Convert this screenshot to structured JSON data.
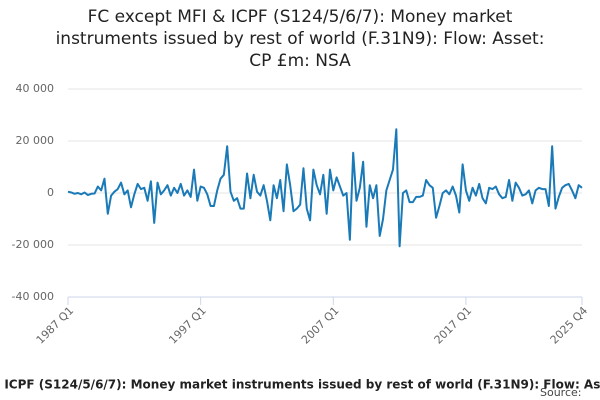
{
  "chart_data": {
    "type": "line",
    "title": "FC except MFI & ICPF (S124/5/6/7): Money market instruments issued by rest of world (F.31N9): Flow: Asset: CP £m: NSA",
    "source": "Source:",
    "categories": [
      "1987 Q1",
      null,
      null,
      null,
      null,
      null,
      null,
      null,
      null,
      null,
      null,
      null,
      null,
      null,
      null,
      null,
      null,
      null,
      null,
      null,
      null,
      null,
      null,
      null,
      null,
      null,
      null,
      null,
      null,
      null,
      null,
      null,
      null,
      null,
      null,
      null,
      null,
      null,
      null,
      null,
      "1997 Q1",
      null,
      null,
      null,
      null,
      null,
      null,
      null,
      null,
      null,
      null,
      null,
      null,
      null,
      null,
      null,
      null,
      null,
      null,
      null,
      null,
      null,
      null,
      null,
      null,
      null,
      null,
      null,
      null,
      null,
      null,
      null,
      null,
      null,
      null,
      null,
      null,
      null,
      null,
      null,
      "2007 Q1",
      null,
      null,
      null,
      null,
      null,
      null,
      null,
      null,
      null,
      null,
      null,
      null,
      null,
      null,
      null,
      null,
      null,
      null,
      null,
      null,
      null,
      null,
      null,
      null,
      null,
      null,
      null,
      null,
      null,
      null,
      null,
      null,
      null,
      null,
      null,
      null,
      null,
      null,
      null,
      "2017 Q1",
      null,
      null,
      null,
      null,
      null,
      null,
      null,
      null,
      null,
      null,
      null,
      null,
      null,
      null,
      null,
      null,
      null,
      null,
      null,
      null,
      null,
      null,
      null,
      null,
      null,
      null,
      null,
      null,
      null,
      null,
      null,
      null,
      null,
      null,
      "2025 Q4"
    ],
    "series": [
      {
        "color": "#1a7ab8",
        "values": [
          500,
          200,
          -300,
          0,
          -500,
          200,
          -800,
          -300,
          -200,
          2500,
          1000,
          5500,
          -8000,
          -1000,
          500,
          1500,
          4000,
          -500,
          1000,
          -5500,
          -500,
          3500,
          1500,
          2000,
          -3000,
          4500,
          -11500,
          4000,
          -500,
          1000,
          3000,
          -1000,
          2000,
          0,
          3500,
          -1000,
          1000,
          -1500,
          9000,
          -3000,
          2500,
          2000,
          -500,
          -5000,
          -5000,
          1000,
          5500,
          7000,
          18000,
          500,
          -3000,
          -2000,
          -6000,
          -6000,
          7500,
          -2000,
          7000,
          500,
          -1000,
          3000,
          -3000,
          -10500,
          3000,
          -2000,
          5000,
          -7000,
          11000,
          3000,
          -7000,
          -6000,
          -4500,
          9500,
          -6000,
          -10500,
          9000,
          3000,
          -500,
          7000,
          -8000,
          9000,
          1000,
          6000,
          2500,
          -1000,
          0,
          -18000,
          15500,
          -3000,
          2000,
          12000,
          -13000,
          3000,
          -2000,
          3000,
          -16500,
          -10000,
          1000,
          5000,
          9000,
          24500,
          -20500,
          0,
          1000,
          -3500,
          -3500,
          -1500,
          -1500,
          -1000,
          5000,
          3000,
          2000,
          -9500,
          -5000,
          0,
          1000,
          -500,
          2500,
          -1000,
          -7500,
          11000,
          1000,
          -3000,
          2000,
          -1000,
          3500,
          -2000,
          -4000,
          2000,
          1500,
          2500,
          -500,
          -2000,
          -1500,
          5000,
          -3000,
          4000,
          2000,
          -1000,
          -500,
          1000,
          -4000,
          1000,
          2000,
          1500,
          1500,
          -5000,
          18000,
          -6000,
          -1500,
          2000,
          3000,
          3500,
          1000,
          -2000,
          3000,
          2000
        ]
      }
    ],
    "ylim": [
      -40000,
      40000
    ],
    "yticks": [
      {
        "value": -40000,
        "label": "-40 000"
      },
      {
        "value": -20000,
        "label": "-20 000"
      },
      0,
      {
        "value": 20000,
        "label": "20 000"
      },
      {
        "value": 40000,
        "label": "40 000"
      }
    ],
    "grid": true
  }
}
